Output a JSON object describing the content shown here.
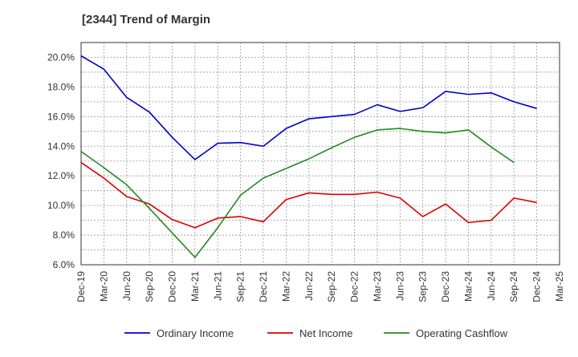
{
  "chart_data": {
    "type": "line",
    "title": "[2344]  Trend of Margin",
    "xlabel": "",
    "ylabel": "",
    "categories": [
      "Dec-19",
      "Mar-20",
      "Jun-20",
      "Sep-20",
      "Dec-20",
      "Mar-21",
      "Jun-21",
      "Sep-21",
      "Dec-21",
      "Mar-22",
      "Jun-22",
      "Sep-22",
      "Dec-22",
      "Mar-23",
      "Jun-23",
      "Sep-23",
      "Dec-23",
      "Mar-24",
      "Jun-24",
      "Sep-24",
      "Dec-24",
      "Mar-25"
    ],
    "ylim": [
      6.0,
      21.0
    ],
    "yticks": [
      6.0,
      8.0,
      10.0,
      12.0,
      14.0,
      16.0,
      18.0,
      20.0
    ],
    "ytick_labels": [
      "6.0%",
      "8.0%",
      "10.0%",
      "12.0%",
      "14.0%",
      "16.0%",
      "18.0%",
      "20.0%"
    ],
    "grid": true,
    "legend_position": "bottom",
    "series": [
      {
        "name": "Ordinary Income",
        "color": "#0000cc",
        "values": [
          20.1,
          19.2,
          17.3,
          16.3,
          14.6,
          13.1,
          14.2,
          14.25,
          14.0,
          15.2,
          15.85,
          16.0,
          16.15,
          16.8,
          16.35,
          16.6,
          17.7,
          17.5,
          17.6,
          17.0,
          16.55,
          null
        ]
      },
      {
        "name": "Net Income",
        "color": "#dd0000",
        "values": [
          12.9,
          11.85,
          10.6,
          10.1,
          9.05,
          8.5,
          9.15,
          9.25,
          8.9,
          10.4,
          10.85,
          10.75,
          10.75,
          10.9,
          10.5,
          9.25,
          10.1,
          8.85,
          9.0,
          10.5,
          10.2,
          null
        ]
      },
      {
        "name": "Operating Cashflow",
        "color": "#228b22",
        "values": [
          13.65,
          12.55,
          11.4,
          9.8,
          8.15,
          6.5,
          8.5,
          10.7,
          11.85,
          12.5,
          13.15,
          13.9,
          14.6,
          15.1,
          15.2,
          15.0,
          14.9,
          15.1,
          13.95,
          12.9,
          null,
          null
        ]
      }
    ]
  }
}
